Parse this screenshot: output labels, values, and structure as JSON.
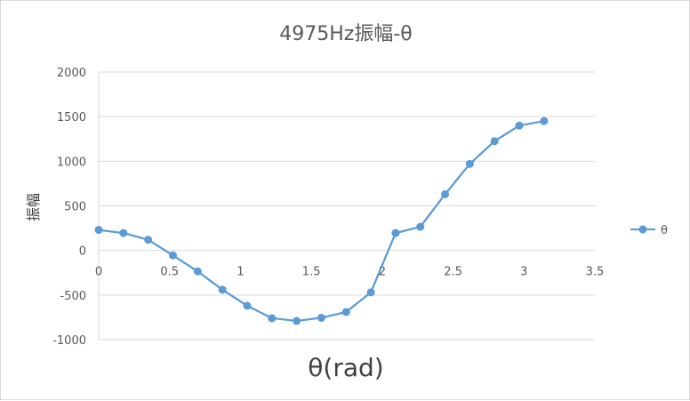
{
  "chart_data": {
    "type": "scatter",
    "title": "4975Hz振幅-θ",
    "xlabel": "θ(rad)",
    "ylabel": "振幅",
    "xlim": [
      0,
      3.5
    ],
    "ylim": [
      -1000,
      2000
    ],
    "x_ticks": [
      "0",
      "0.5",
      "1",
      "1.5",
      "2",
      "2.5",
      "3",
      "3.5"
    ],
    "y_ticks": [
      "2000",
      "1500",
      "1000",
      "500",
      "0",
      "-500",
      "-1000"
    ],
    "grid": "horizontal",
    "legend_position": "right",
    "series_color": "#5b9bd5",
    "series": [
      {
        "name": "θ",
        "x": [
          0,
          0.1745,
          0.349,
          0.5236,
          0.6981,
          0.8727,
          1.0472,
          1.2217,
          1.3963,
          1.5708,
          1.7453,
          1.9199,
          2.0944,
          2.2689,
          2.4435,
          2.618,
          2.7925,
          2.9671,
          3.1416
        ],
        "y": [
          230,
          195,
          120,
          -55,
          -235,
          -440,
          -620,
          -760,
          -790,
          -755,
          -690,
          -470,
          195,
          265,
          630,
          970,
          1225,
          1400,
          1450
        ]
      }
    ]
  }
}
